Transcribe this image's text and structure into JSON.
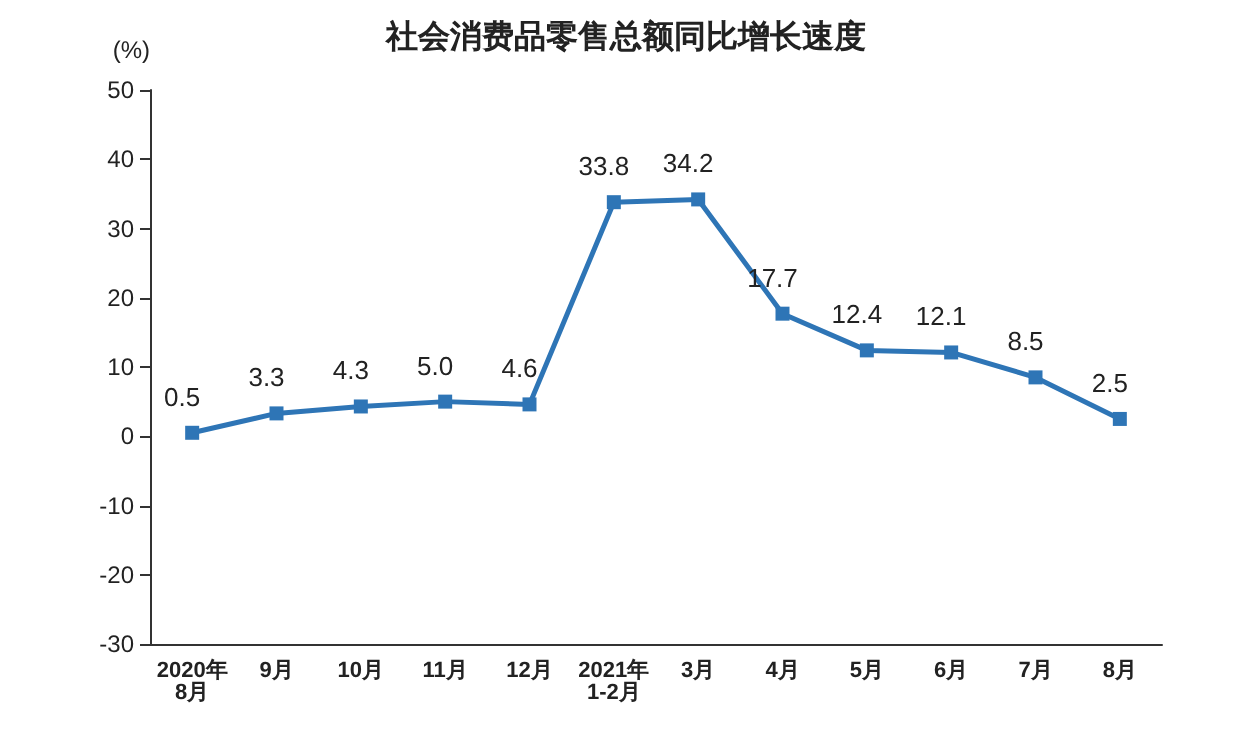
{
  "chart_data": {
    "type": "line",
    "title": "社会消费品零售总额同比增长速度",
    "ylabel": "(%)",
    "categories": [
      "2020年\n8月",
      "9月",
      "10月",
      "11月",
      "12月",
      "2021年\n1-2月",
      "3月",
      "4月",
      "5月",
      "6月",
      "7月",
      "8月"
    ],
    "series": [
      {
        "color": "#2e75b6",
        "values": [
          0.5,
          3.3,
          4.3,
          5.0,
          4.6,
          33.8,
          34.2,
          17.7,
          12.4,
          12.1,
          8.5,
          2.5
        ],
        "value_labels": [
          "0.5",
          "3.3",
          "4.3",
          "5.0",
          "4.6",
          "33.8",
          "34.2",
          "17.7",
          "12.4",
          "12.1",
          "8.5",
          "2.5"
        ]
      }
    ],
    "ylim": [
      -30,
      50
    ],
    "yticks": [
      -30,
      -20,
      -10,
      0,
      10,
      20,
      30,
      40,
      50
    ],
    "grid": false,
    "marker": "square",
    "line_style": "solid"
  }
}
